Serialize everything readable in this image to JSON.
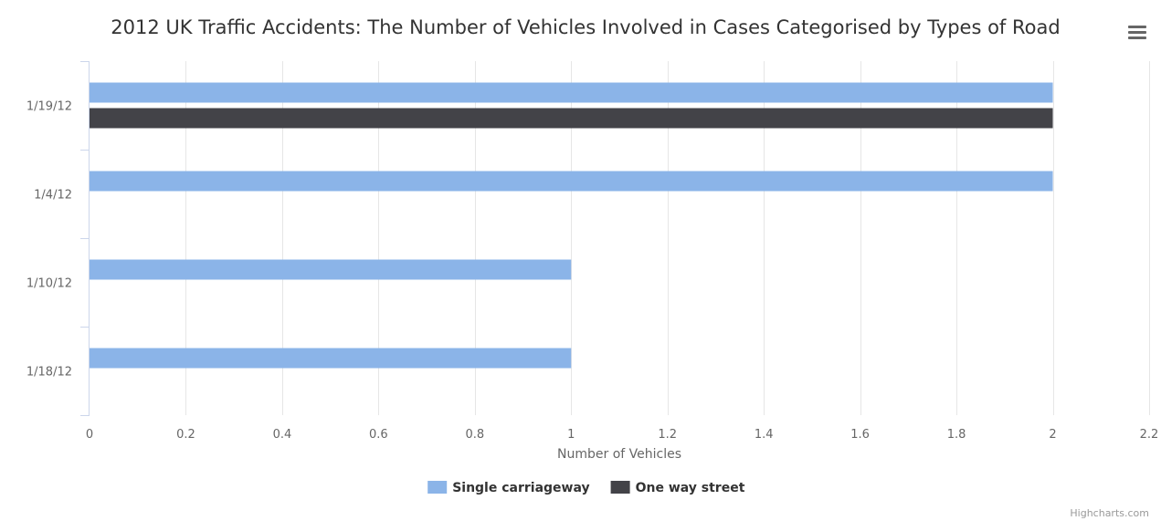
{
  "chart_data": {
    "type": "bar",
    "orientation": "horizontal",
    "title": "2012 UK Traffic Accidents: The Number of Vehicles Involved in Cases Categorised by Types of Road",
    "categories": [
      "1/19/12",
      "1/4/12",
      "1/10/12",
      "1/18/12"
    ],
    "series": [
      {
        "name": "Single carriageway",
        "color": "#8bb4e8",
        "values": [
          2,
          2,
          1,
          1
        ]
      },
      {
        "name": "One way street",
        "color": "#434348",
        "values": [
          2,
          null,
          null,
          null
        ]
      }
    ],
    "xlabel": "Number of Vehicles",
    "xlim": [
      0,
      2.2
    ],
    "x_ticks": [
      "0",
      "0.2",
      "0.4",
      "0.6",
      "0.8",
      "1",
      "1.2",
      "1.4",
      "1.6",
      "1.8",
      "2",
      "2.2"
    ],
    "grid": true,
    "legend_position": "bottom-center",
    "credits": "Highcharts.com"
  },
  "menu": {
    "icon": "hamburger-menu-icon"
  }
}
